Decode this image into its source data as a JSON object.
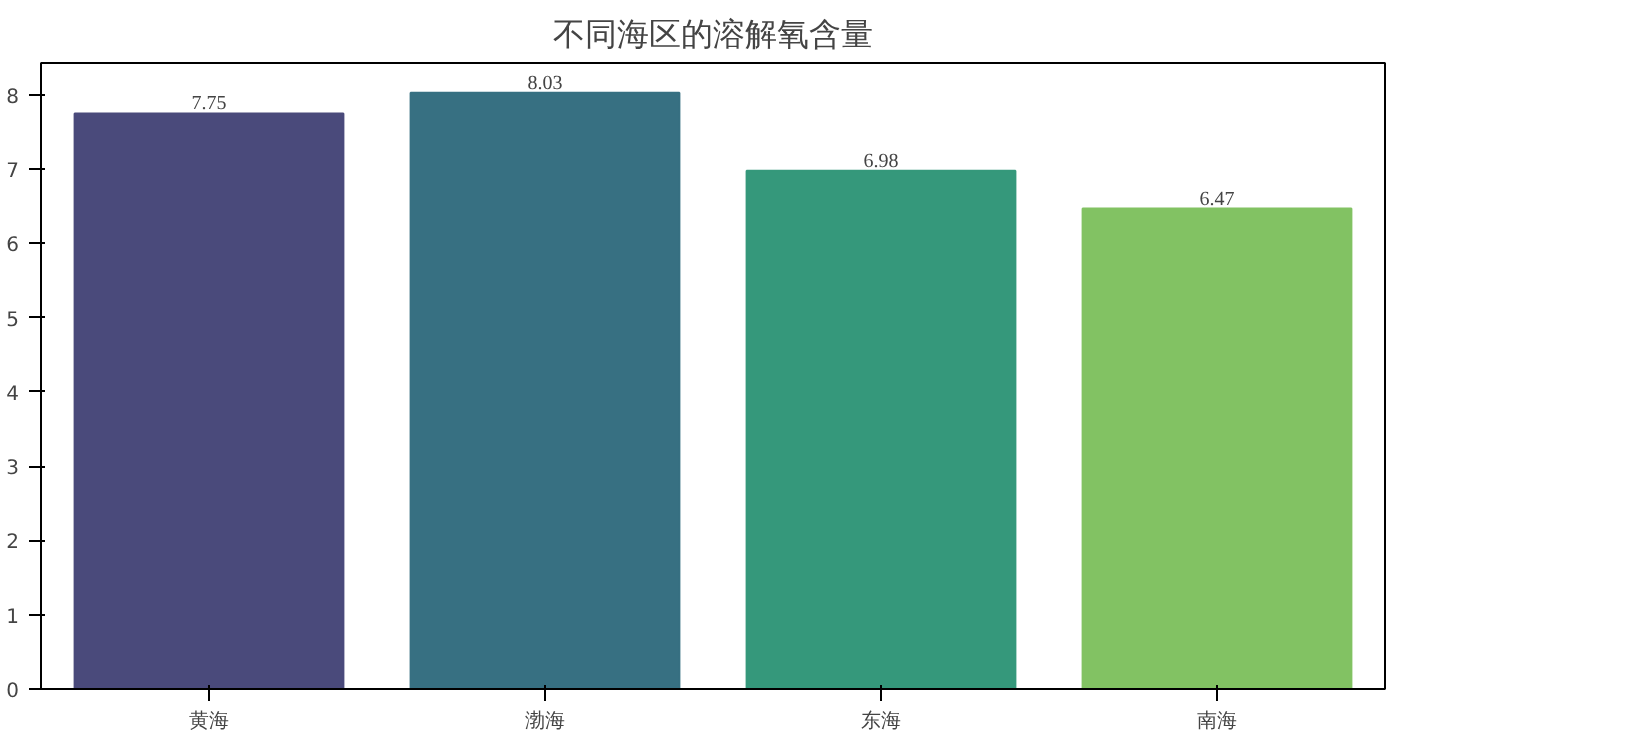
{
  "chart_data": {
    "type": "bar",
    "title": "不同海区的溶解氧含量",
    "categories": [
      "黄海",
      "渤海",
      "东海",
      "南海"
    ],
    "values": [
      7.75,
      8.03,
      6.98,
      6.47
    ],
    "colors": [
      "#4a4a7b",
      "#377082",
      "#35987b",
      "#82c263"
    ],
    "ylim": [
      0,
      8.43
    ],
    "yticks": [
      0,
      1,
      2,
      3,
      4,
      5,
      6,
      7,
      8
    ],
    "data_labels": true,
    "grid": false
  }
}
